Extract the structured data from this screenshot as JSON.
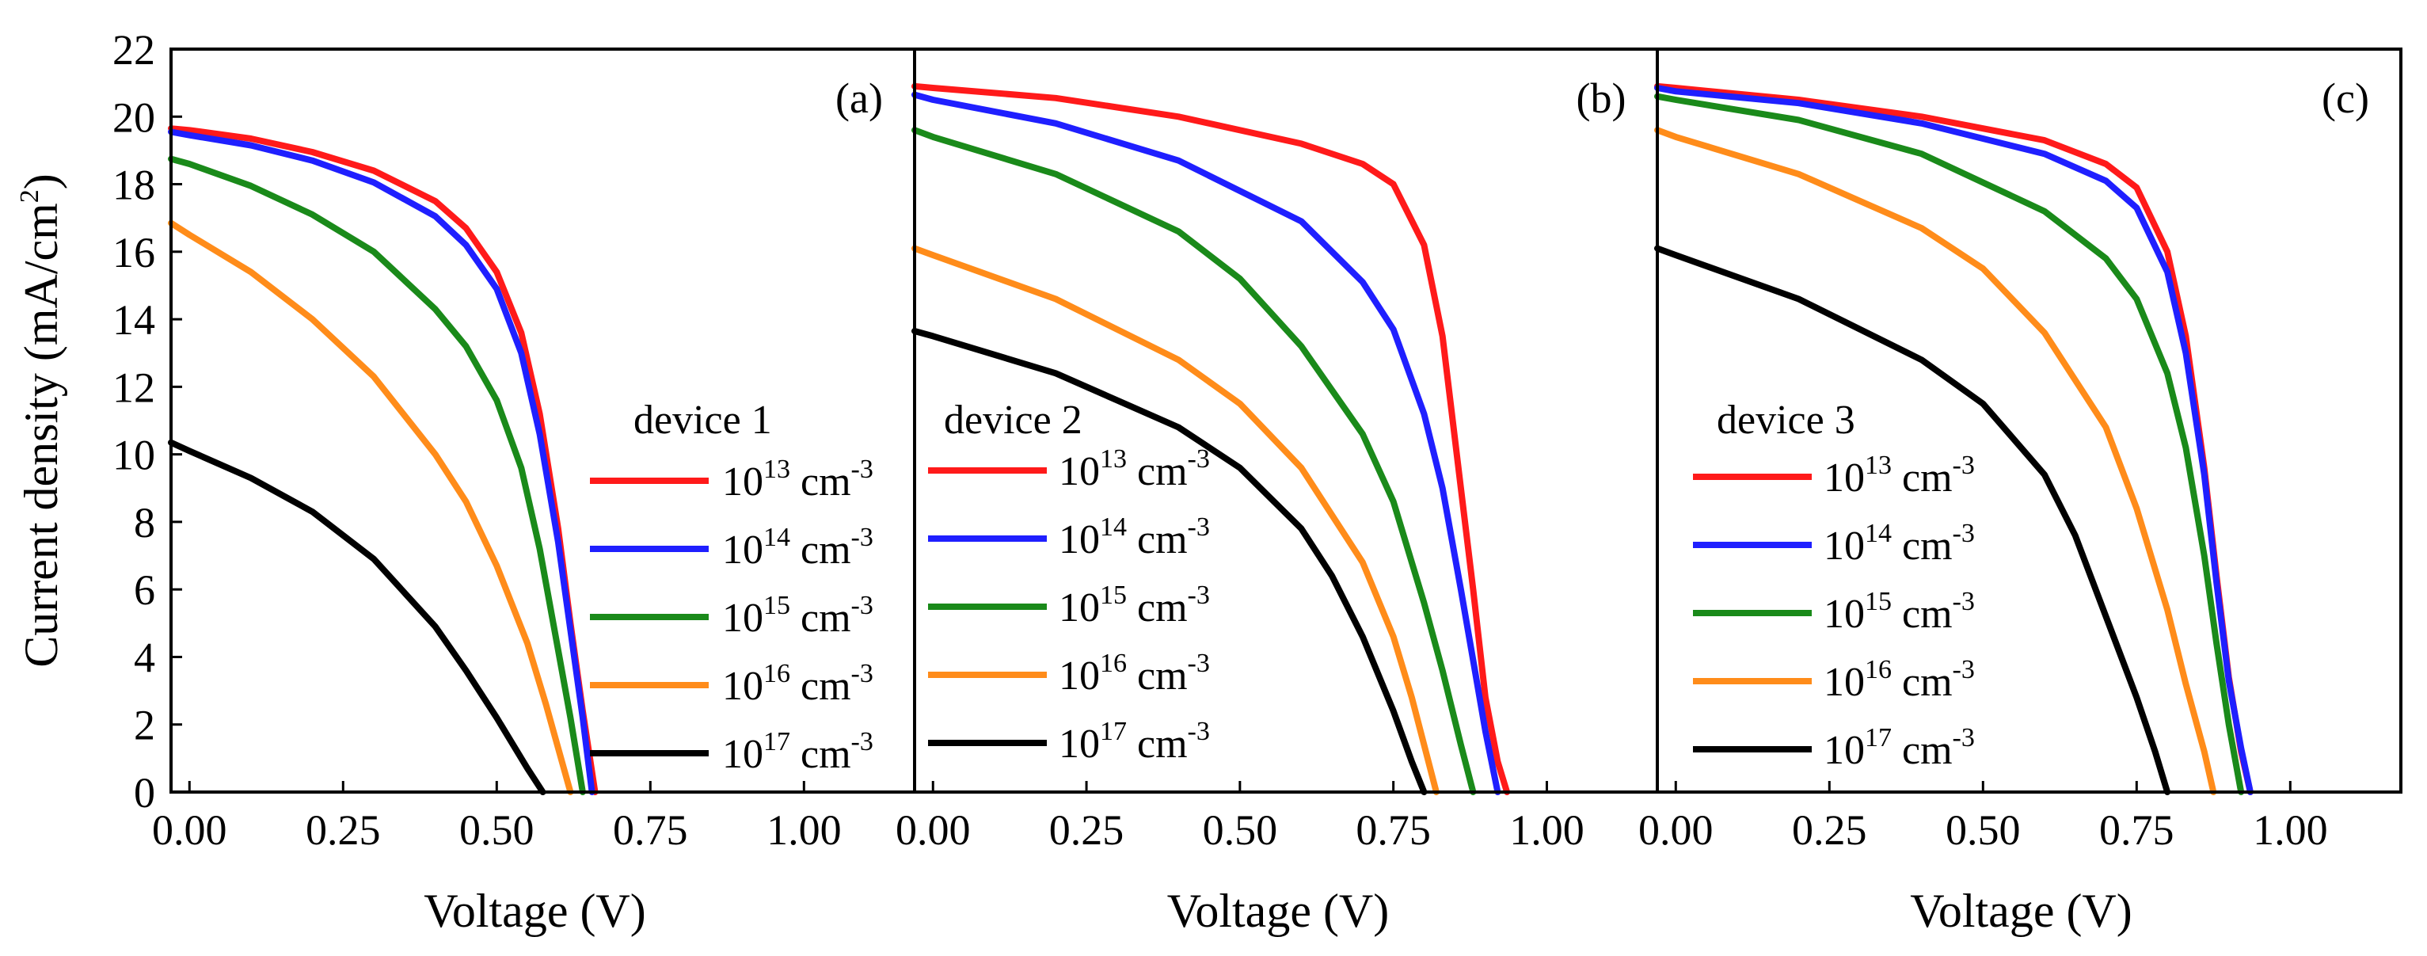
{
  "chart_data": {
    "type": "line",
    "ylabel": "Current density (mA/cm",
    "ylabel_sup": "2",
    "ylabel_end": ")",
    "xlabel": "Voltage (V)",
    "ylim": [
      0,
      22
    ],
    "xlim": [
      -0.03,
      1.18
    ],
    "yticks": [
      "0",
      "2",
      "4",
      "6",
      "8",
      "10",
      "12",
      "14",
      "16",
      "18",
      "20",
      "22"
    ],
    "xticks": [
      "0.00",
      "0.25",
      "0.50",
      "0.75",
      "1.00"
    ],
    "colors": {
      "1e13": "#ff1a1a",
      "1e14": "#1f1fff",
      "1e15": "#1a8a1a",
      "1e16": "#ff8c1a",
      "1e17": "#000000"
    },
    "panels": [
      {
        "tag": "(a)",
        "legend_title": "device 1",
        "series": [
          {
            "name": "10^13 cm^-3",
            "base": "10",
            "exp": "13",
            "unit": "cm",
            "unit_exp": "-3",
            "color_key": "1e13",
            "points": [
              [
                -0.03,
                19.65
              ],
              [
                0.0,
                19.6
              ],
              [
                0.1,
                19.35
              ],
              [
                0.2,
                18.95
              ],
              [
                0.3,
                18.4
              ],
              [
                0.4,
                17.5
              ],
              [
                0.45,
                16.7
              ],
              [
                0.5,
                15.4
              ],
              [
                0.54,
                13.6
              ],
              [
                0.57,
                11.2
              ],
              [
                0.6,
                7.8
              ],
              [
                0.62,
                5.0
              ],
              [
                0.64,
                2.4
              ],
              [
                0.66,
                0.0
              ]
            ]
          },
          {
            "name": "10^14 cm^-3",
            "base": "10",
            "exp": "14",
            "unit": "cm",
            "unit_exp": "-3",
            "color_key": "1e14",
            "points": [
              [
                -0.03,
                19.55
              ],
              [
                0.0,
                19.45
              ],
              [
                0.1,
                19.15
              ],
              [
                0.2,
                18.7
              ],
              [
                0.3,
                18.05
              ],
              [
                0.4,
                17.05
              ],
              [
                0.45,
                16.2
              ],
              [
                0.5,
                14.9
              ],
              [
                0.54,
                13.0
              ],
              [
                0.57,
                10.6
              ],
              [
                0.6,
                7.4
              ],
              [
                0.62,
                4.8
              ],
              [
                0.64,
                2.2
              ],
              [
                0.655,
                0.0
              ]
            ]
          },
          {
            "name": "10^15 cm^-3",
            "base": "10",
            "exp": "15",
            "unit": "cm",
            "unit_exp": "-3",
            "color_key": "1e15",
            "points": [
              [
                -0.03,
                18.75
              ],
              [
                0.0,
                18.6
              ],
              [
                0.1,
                17.95
              ],
              [
                0.2,
                17.1
              ],
              [
                0.3,
                16.0
              ],
              [
                0.4,
                14.3
              ],
              [
                0.45,
                13.2
              ],
              [
                0.5,
                11.6
              ],
              [
                0.54,
                9.6
              ],
              [
                0.57,
                7.2
              ],
              [
                0.6,
                4.2
              ],
              [
                0.62,
                2.2
              ],
              [
                0.64,
                0.0
              ]
            ]
          },
          {
            "name": "10^16 cm^-3",
            "base": "10",
            "exp": "16",
            "unit": "cm",
            "unit_exp": "-3",
            "color_key": "1e16",
            "points": [
              [
                -0.03,
                16.85
              ],
              [
                0.0,
                16.5
              ],
              [
                0.1,
                15.4
              ],
              [
                0.2,
                14.0
              ],
              [
                0.3,
                12.3
              ],
              [
                0.4,
                10.0
              ],
              [
                0.45,
                8.6
              ],
              [
                0.5,
                6.7
              ],
              [
                0.55,
                4.4
              ],
              [
                0.58,
                2.6
              ],
              [
                0.6,
                1.3
              ],
              [
                0.62,
                0.0
              ]
            ]
          },
          {
            "name": "10^17 cm^-3",
            "base": "10",
            "exp": "17",
            "unit": "cm",
            "unit_exp": "-3",
            "color_key": "1e17",
            "points": [
              [
                -0.03,
                10.35
              ],
              [
                0.0,
                10.1
              ],
              [
                0.1,
                9.3
              ],
              [
                0.2,
                8.3
              ],
              [
                0.3,
                6.9
              ],
              [
                0.4,
                4.9
              ],
              [
                0.45,
                3.6
              ],
              [
                0.5,
                2.2
              ],
              [
                0.55,
                0.7
              ],
              [
                0.575,
                0.0
              ]
            ]
          }
        ]
      },
      {
        "tag": "(b)",
        "legend_title": "device 2",
        "series": [
          {
            "name": "10^13 cm^-3",
            "base": "10",
            "exp": "13",
            "unit": "cm",
            "unit_exp": "-3",
            "color_key": "1e13",
            "points": [
              [
                -0.03,
                20.9
              ],
              [
                0.0,
                20.85
              ],
              [
                0.2,
                20.55
              ],
              [
                0.4,
                20.0
              ],
              [
                0.6,
                19.2
              ],
              [
                0.7,
                18.6
              ],
              [
                0.75,
                18.0
              ],
              [
                0.8,
                16.2
              ],
              [
                0.83,
                13.5
              ],
              [
                0.86,
                9.0
              ],
              [
                0.88,
                6.0
              ],
              [
                0.9,
                2.8
              ],
              [
                0.92,
                0.9
              ],
              [
                0.935,
                0.0
              ]
            ]
          },
          {
            "name": "10^14 cm^-3",
            "base": "10",
            "exp": "14",
            "unit": "cm",
            "unit_exp": "-3",
            "color_key": "1e14",
            "points": [
              [
                -0.03,
                20.65
              ],
              [
                0.0,
                20.5
              ],
              [
                0.2,
                19.8
              ],
              [
                0.4,
                18.7
              ],
              [
                0.6,
                16.9
              ],
              [
                0.7,
                15.1
              ],
              [
                0.75,
                13.7
              ],
              [
                0.8,
                11.2
              ],
              [
                0.83,
                9.0
              ],
              [
                0.86,
                6.0
              ],
              [
                0.88,
                3.9
              ],
              [
                0.9,
                1.8
              ],
              [
                0.92,
                0.0
              ]
            ]
          },
          {
            "name": "10^15 cm^-3",
            "base": "10",
            "exp": "15",
            "unit": "cm",
            "unit_exp": "-3",
            "color_key": "1e15",
            "points": [
              [
                -0.03,
                19.6
              ],
              [
                0.0,
                19.4
              ],
              [
                0.2,
                18.3
              ],
              [
                0.4,
                16.6
              ],
              [
                0.5,
                15.2
              ],
              [
                0.6,
                13.2
              ],
              [
                0.7,
                10.6
              ],
              [
                0.75,
                8.6
              ],
              [
                0.8,
                5.6
              ],
              [
                0.83,
                3.6
              ],
              [
                0.86,
                1.4
              ],
              [
                0.88,
                0.0
              ]
            ]
          },
          {
            "name": "10^16 cm^-3",
            "base": "10",
            "exp": "16",
            "unit": "cm",
            "unit_exp": "-3",
            "color_key": "1e16",
            "points": [
              [
                -0.03,
                16.1
              ],
              [
                0.0,
                15.9
              ],
              [
                0.2,
                14.6
              ],
              [
                0.4,
                12.8
              ],
              [
                0.5,
                11.5
              ],
              [
                0.6,
                9.6
              ],
              [
                0.7,
                6.8
              ],
              [
                0.75,
                4.6
              ],
              [
                0.78,
                2.8
              ],
              [
                0.8,
                1.4
              ],
              [
                0.82,
                0.0
              ]
            ]
          },
          {
            "name": "10^17 cm^-3",
            "base": "10",
            "exp": "17",
            "unit": "cm",
            "unit_exp": "-3",
            "color_key": "1e17",
            "points": [
              [
                -0.03,
                13.65
              ],
              [
                0.0,
                13.5
              ],
              [
                0.2,
                12.4
              ],
              [
                0.4,
                10.8
              ],
              [
                0.5,
                9.6
              ],
              [
                0.6,
                7.8
              ],
              [
                0.65,
                6.4
              ],
              [
                0.7,
                4.6
              ],
              [
                0.75,
                2.4
              ],
              [
                0.78,
                0.9
              ],
              [
                0.8,
                0.0
              ]
            ]
          }
        ]
      },
      {
        "tag": "(c)",
        "legend_title": "device 3",
        "series": [
          {
            "name": "10^13 cm^-3",
            "base": "10",
            "exp": "13",
            "unit": "cm",
            "unit_exp": "-3",
            "color_key": "1e13",
            "points": [
              [
                -0.03,
                20.9
              ],
              [
                0.0,
                20.85
              ],
              [
                0.2,
                20.5
              ],
              [
                0.4,
                20.0
              ],
              [
                0.6,
                19.3
              ],
              [
                0.7,
                18.6
              ],
              [
                0.75,
                17.9
              ],
              [
                0.8,
                16.0
              ],
              [
                0.83,
                13.5
              ],
              [
                0.86,
                9.6
              ],
              [
                0.88,
                6.4
              ],
              [
                0.9,
                3.4
              ],
              [
                0.92,
                1.2
              ],
              [
                0.935,
                0.0
              ]
            ]
          },
          {
            "name": "10^14 cm^-3",
            "base": "10",
            "exp": "14",
            "unit": "cm",
            "unit_exp": "-3",
            "color_key": "1e14",
            "points": [
              [
                -0.03,
                20.85
              ],
              [
                0.0,
                20.75
              ],
              [
                0.2,
                20.4
              ],
              [
                0.4,
                19.8
              ],
              [
                0.6,
                18.9
              ],
              [
                0.7,
                18.1
              ],
              [
                0.75,
                17.3
              ],
              [
                0.8,
                15.4
              ],
              [
                0.83,
                13.0
              ],
              [
                0.86,
                9.4
              ],
              [
                0.88,
                6.2
              ],
              [
                0.9,
                3.3
              ],
              [
                0.92,
                1.3
              ],
              [
                0.935,
                0.0
              ]
            ]
          },
          {
            "name": "10^15 cm^-3",
            "base": "10",
            "exp": "15",
            "unit": "cm",
            "unit_exp": "-3",
            "color_key": "1e15",
            "points": [
              [
                -0.03,
                20.6
              ],
              [
                0.0,
                20.5
              ],
              [
                0.2,
                19.9
              ],
              [
                0.4,
                18.9
              ],
              [
                0.6,
                17.2
              ],
              [
                0.7,
                15.8
              ],
              [
                0.75,
                14.6
              ],
              [
                0.8,
                12.4
              ],
              [
                0.83,
                10.2
              ],
              [
                0.86,
                7.0
              ],
              [
                0.88,
                4.4
              ],
              [
                0.9,
                2.0
              ],
              [
                0.92,
                0.0
              ]
            ]
          },
          {
            "name": "10^16 cm^-3",
            "base": "10",
            "exp": "16",
            "unit": "cm",
            "unit_exp": "-3",
            "color_key": "1e16",
            "points": [
              [
                -0.03,
                19.6
              ],
              [
                0.0,
                19.4
              ],
              [
                0.2,
                18.3
              ],
              [
                0.4,
                16.7
              ],
              [
                0.5,
                15.5
              ],
              [
                0.6,
                13.6
              ],
              [
                0.7,
                10.8
              ],
              [
                0.75,
                8.4
              ],
              [
                0.8,
                5.4
              ],
              [
                0.83,
                3.2
              ],
              [
                0.86,
                1.2
              ],
              [
                0.875,
                0.0
              ]
            ]
          },
          {
            "name": "10^17 cm^-3",
            "base": "10",
            "exp": "17",
            "unit": "cm",
            "unit_exp": "-3",
            "color_key": "1e17",
            "points": [
              [
                -0.03,
                16.1
              ],
              [
                0.0,
                15.9
              ],
              [
                0.2,
                14.6
              ],
              [
                0.4,
                12.8
              ],
              [
                0.5,
                11.5
              ],
              [
                0.6,
                9.4
              ],
              [
                0.65,
                7.6
              ],
              [
                0.7,
                5.2
              ],
              [
                0.75,
                2.8
              ],
              [
                0.78,
                1.2
              ],
              [
                0.8,
                0.0
              ]
            ]
          }
        ]
      }
    ]
  }
}
